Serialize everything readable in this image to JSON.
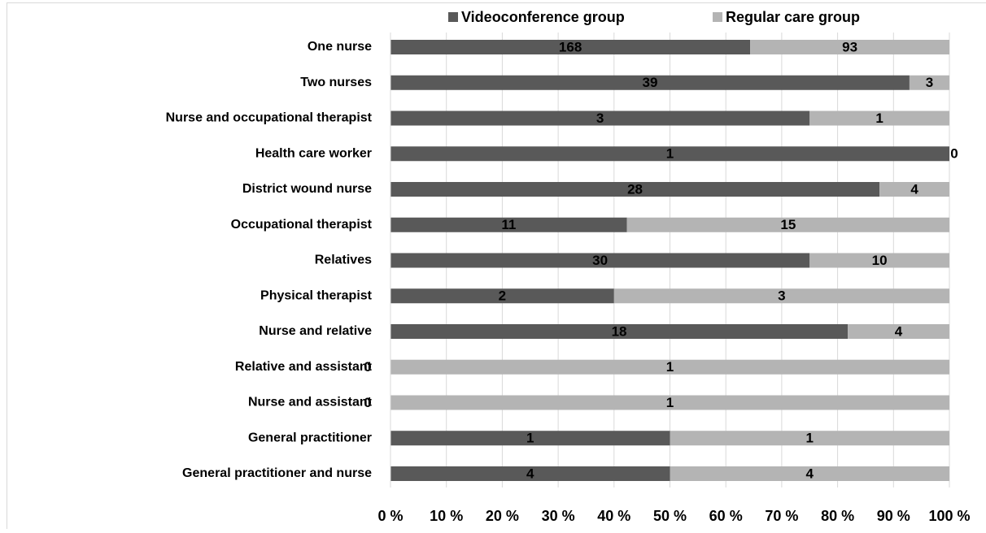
{
  "chart_data": {
    "type": "bar",
    "orientation": "horizontal",
    "stacking": "percent",
    "categories": [
      "One nurse",
      "Two nurses",
      "Nurse and occupational therapist",
      "Health care worker",
      "District wound nurse",
      "Occupational therapist",
      "Relatives",
      "Physical therapist",
      "Nurse and relative",
      "Relative and assistant",
      "Nurse and assistant",
      "General practitioner",
      "General practitioner and nurse"
    ],
    "series": [
      {
        "name": "Videoconference group",
        "color": "#595959",
        "values": [
          168,
          39,
          3,
          1,
          28,
          11,
          30,
          2,
          18,
          0,
          0,
          1,
          4
        ]
      },
      {
        "name": "Regular care group",
        "color": "#b4b4b4",
        "values": [
          93,
          3,
          1,
          0,
          4,
          15,
          10,
          3,
          4,
          1,
          1,
          1,
          4
        ]
      }
    ],
    "xlim": [
      0,
      100
    ],
    "xticks": [
      {
        "value": 0,
        "label": "0 %"
      },
      {
        "value": 10,
        "label": "10 %"
      },
      {
        "value": 20,
        "label": "20 %"
      },
      {
        "value": 30,
        "label": "30 %"
      },
      {
        "value": 40,
        "label": "40 %"
      },
      {
        "value": 50,
        "label": "50 %"
      },
      {
        "value": 60,
        "label": "60 %"
      },
      {
        "value": 70,
        "label": "70 %"
      },
      {
        "value": 80,
        "label": "80 %"
      },
      {
        "value": 90,
        "label": "90 %"
      },
      {
        "value": 100,
        "label": "100 %"
      }
    ],
    "grid": true,
    "legend": "top"
  }
}
